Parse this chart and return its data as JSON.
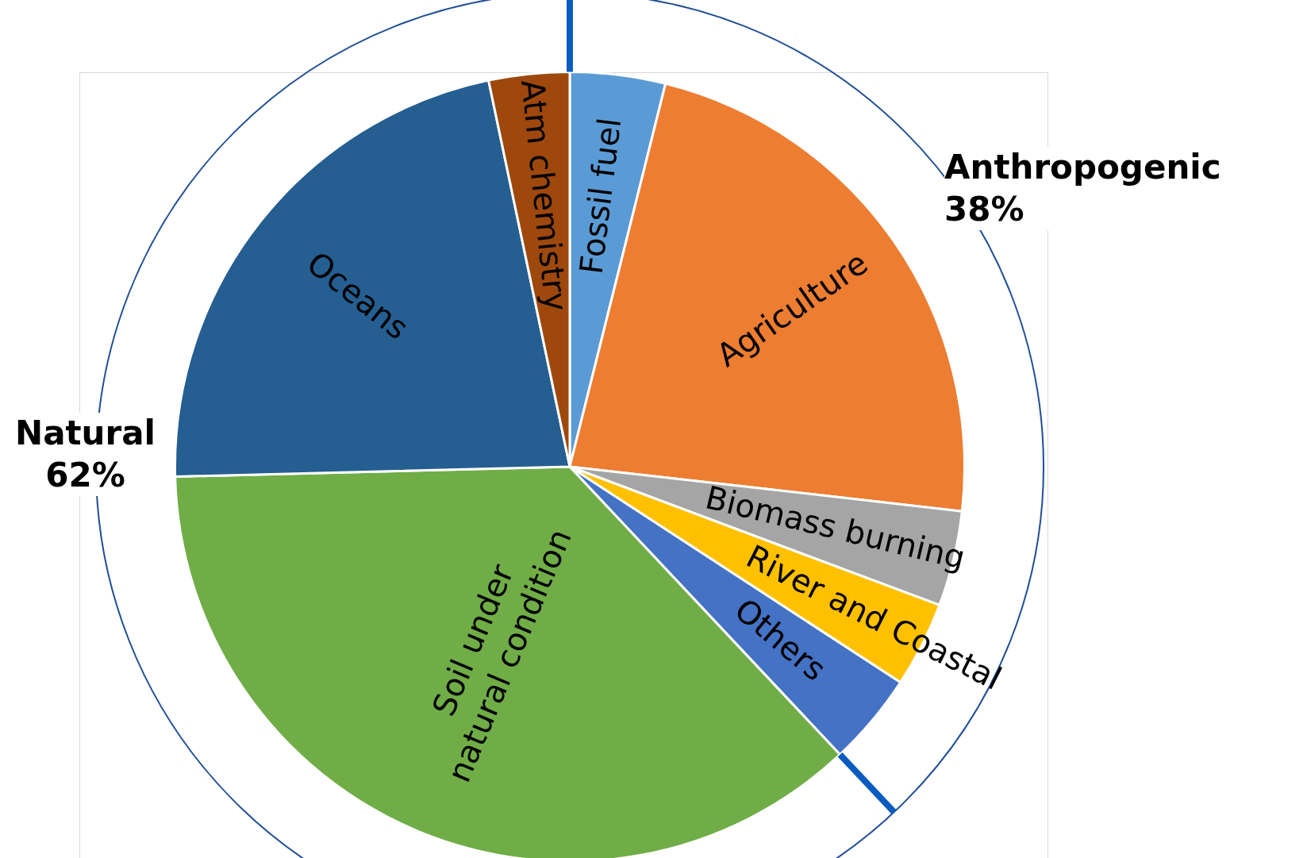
{
  "chart_data": {
    "type": "pie",
    "categories": [
      "Fossil fuel",
      "Agriculture",
      "Biomass burning",
      "River and Coastal",
      "Others",
      "Soil under natural condition",
      "Oceans",
      "Atm chemistry"
    ],
    "values": [
      3.9,
      22.9,
      3.9,
      3.5,
      3.8,
      36.6,
      22.1,
      3.3
    ],
    "colors": [
      "#5b9bd5",
      "#ed7d31",
      "#a5a5a5",
      "#ffc000",
      "#4472c4",
      "#70ad47",
      "#255e91",
      "#9e480e"
    ],
    "annotations": [
      "Anthropogenic 38%",
      "Natural 62%"
    ],
    "legend": false
  }
}
